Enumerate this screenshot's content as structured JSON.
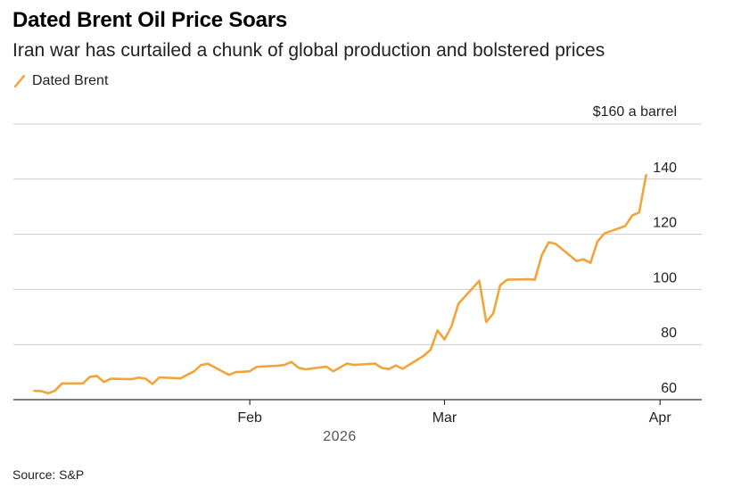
{
  "header": {
    "title": "Dated Brent Oil Price Soars",
    "subtitle": "Iran war has curtailed a chunk of global production and bolstered prices"
  },
  "footer": {
    "source": "Source: S&P"
  },
  "colors": {
    "series": "#f2a43a",
    "grid": "#cccccc",
    "axis": "#333333"
  },
  "chart_data": {
    "type": "line",
    "title": "Dated Brent Oil Price Soars",
    "subtitle": "Iran war has curtailed a chunk of global production and bolstered prices",
    "xlabel": "2026",
    "ylabel": "",
    "unit_label": "$160 a barrel",
    "ylim": [
      60,
      160
    ],
    "y_ticks": [
      60,
      80,
      100,
      120,
      140
    ],
    "x_ticks": [
      {
        "label": "Feb",
        "day": 31
      },
      {
        "label": "Mar",
        "day": 59
      },
      {
        "label": "Apr",
        "day": 90
      }
    ],
    "x_range_days": [
      -3,
      96
    ],
    "legend": [
      "Dated Brent"
    ],
    "legend_position": "top-left",
    "series": [
      {
        "name": "Dated Brent",
        "points": [
          [
            0,
            63.2
          ],
          [
            1,
            63.1
          ],
          [
            2,
            62.3
          ],
          [
            3,
            63.3
          ],
          [
            4,
            65.9
          ],
          [
            7,
            65.9
          ],
          [
            8,
            68.3
          ],
          [
            9,
            68.6
          ],
          [
            10,
            66.4
          ],
          [
            11,
            67.6
          ],
          [
            14,
            67.4
          ],
          [
            15,
            68.0
          ],
          [
            16,
            67.6
          ],
          [
            17,
            65.7
          ],
          [
            18,
            68.1
          ],
          [
            21,
            67.7
          ],
          [
            22,
            69.0
          ],
          [
            23,
            70.3
          ],
          [
            24,
            72.6
          ],
          [
            25,
            73.0
          ],
          [
            28,
            69.0
          ],
          [
            29,
            70.0
          ],
          [
            30,
            70.1
          ],
          [
            31,
            70.3
          ],
          [
            32,
            71.9
          ],
          [
            35,
            72.3
          ],
          [
            36,
            72.6
          ],
          [
            37,
            73.7
          ],
          [
            38,
            71.6
          ],
          [
            39,
            71.0
          ],
          [
            42,
            72.0
          ],
          [
            43,
            70.3
          ],
          [
            44,
            71.7
          ],
          [
            45,
            73.1
          ],
          [
            46,
            72.6
          ],
          [
            49,
            73.1
          ],
          [
            50,
            71.5
          ],
          [
            51,
            71.1
          ],
          [
            52,
            72.4
          ],
          [
            53,
            71.2
          ],
          [
            56,
            75.9
          ],
          [
            57,
            78.1
          ],
          [
            58,
            85.1
          ],
          [
            59,
            81.8
          ],
          [
            60,
            86.6
          ],
          [
            61,
            94.8
          ],
          [
            64,
            103.1
          ],
          [
            65,
            88.2
          ],
          [
            66,
            91.2
          ],
          [
            67,
            101.5
          ],
          [
            68,
            103.5
          ],
          [
            71,
            103.7
          ],
          [
            72,
            103.5
          ],
          [
            73,
            112.4
          ],
          [
            74,
            117.1
          ],
          [
            75,
            116.5
          ],
          [
            78,
            110.3
          ],
          [
            79,
            110.9
          ],
          [
            80,
            109.6
          ],
          [
            81,
            117.3
          ],
          [
            82,
            120.3
          ],
          [
            85,
            123.0
          ],
          [
            86,
            126.8
          ],
          [
            87,
            127.9
          ],
          [
            88,
            141.5
          ]
        ]
      }
    ]
  }
}
